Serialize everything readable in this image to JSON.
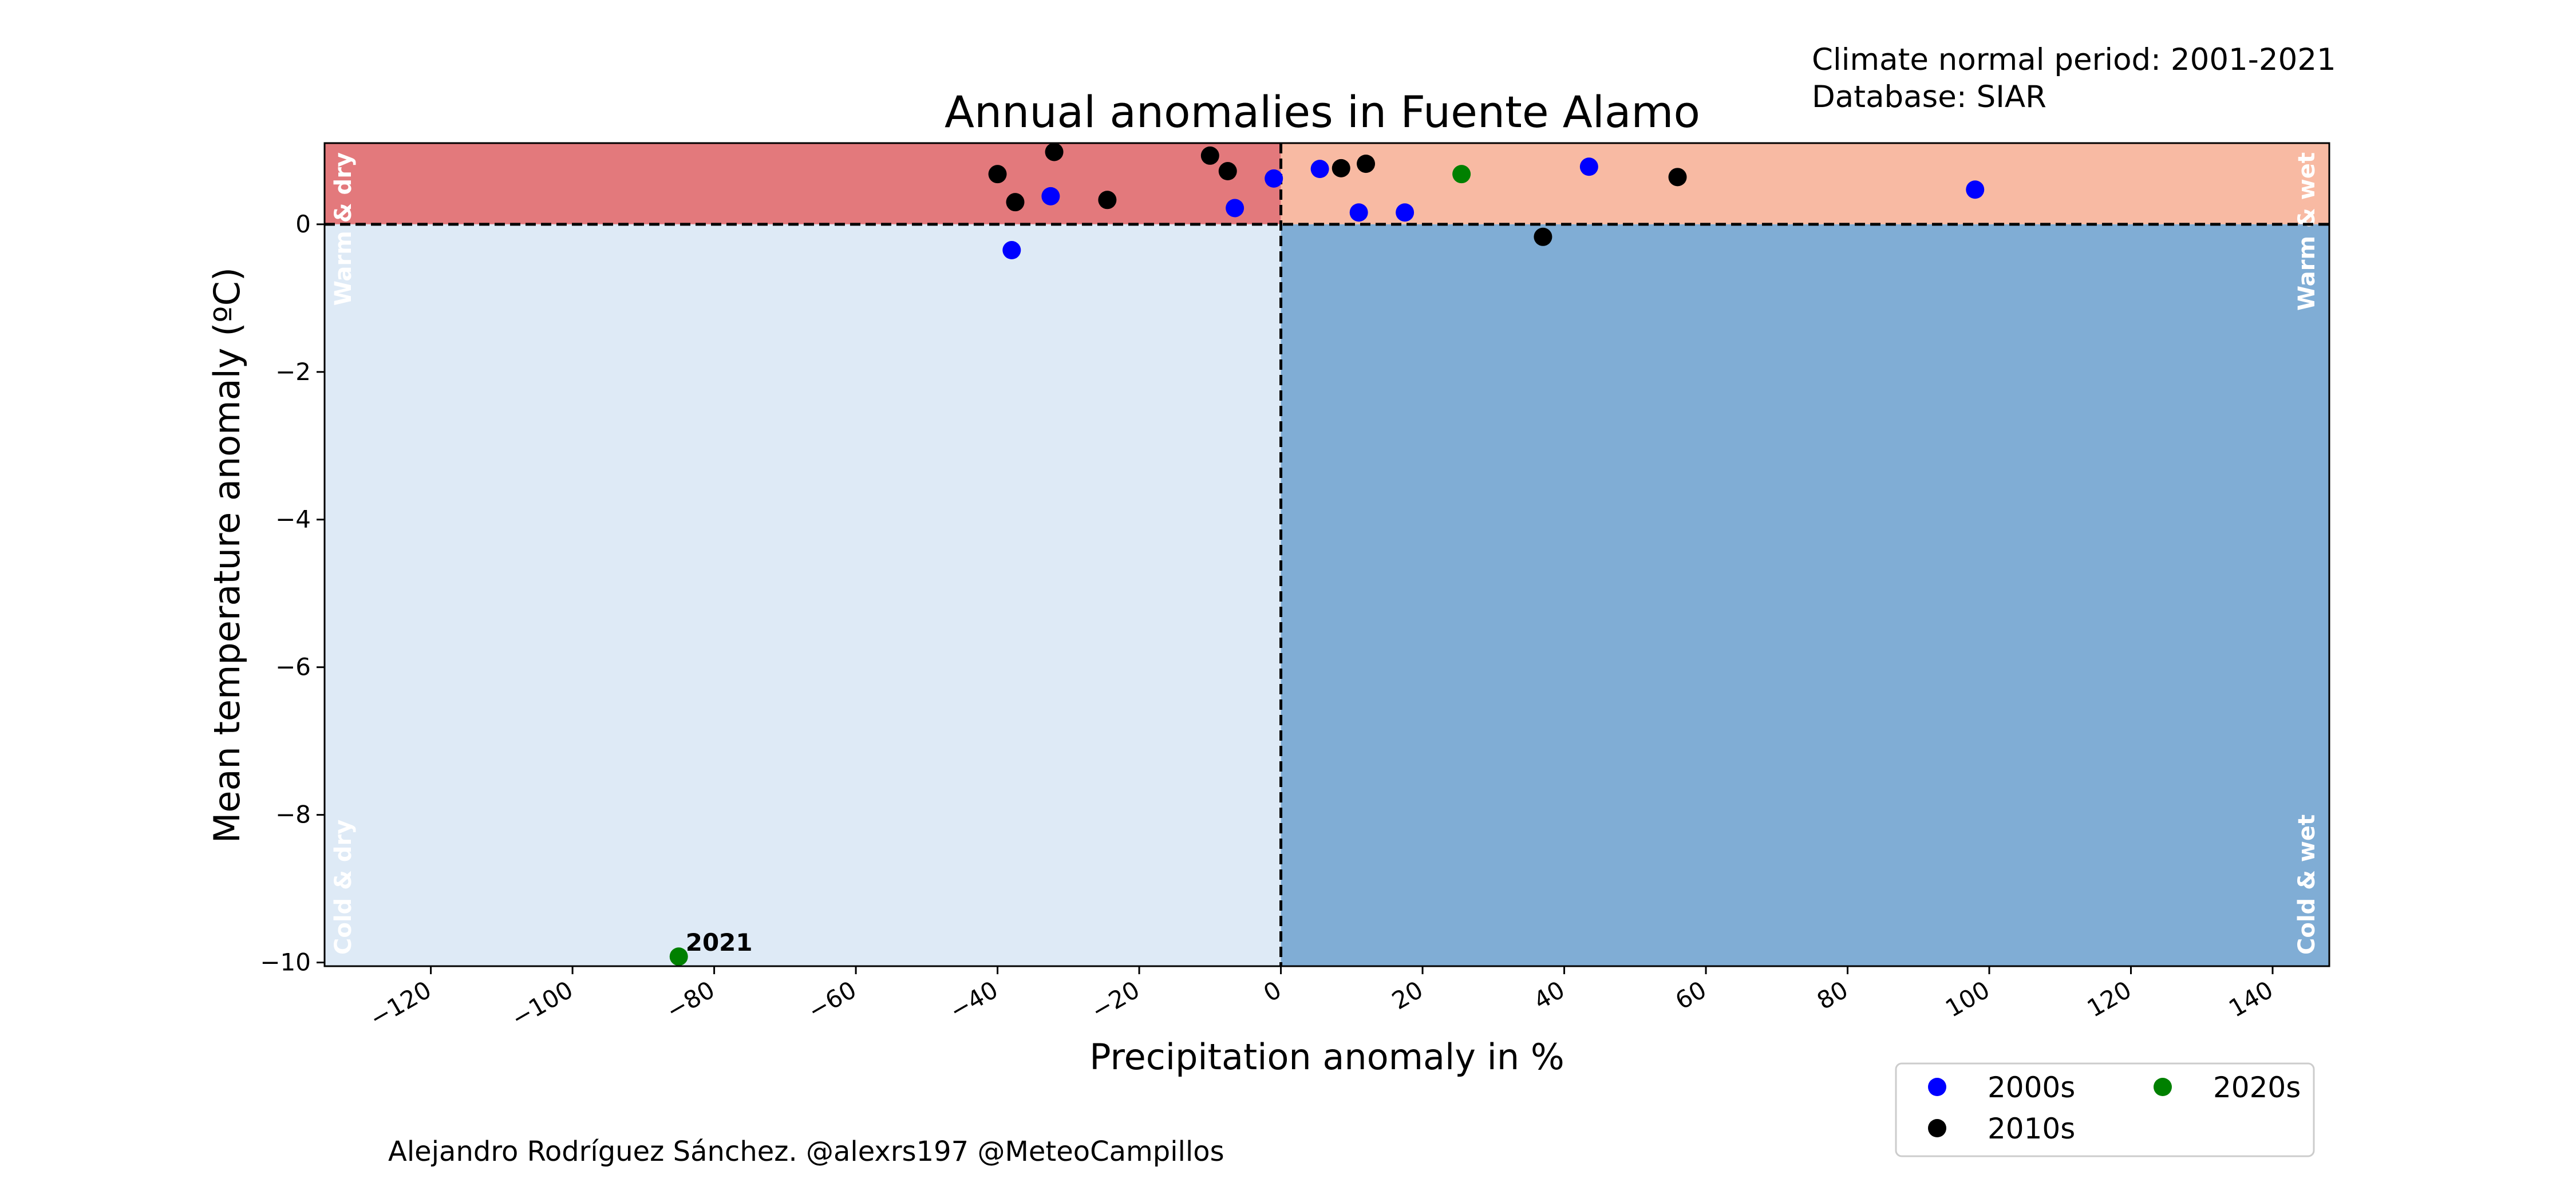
{
  "chart_data": {
    "type": "scatter",
    "title": "Annual anomalies in Fuente Alamo",
    "xlabel": "Precipitation anomaly in %",
    "ylabel": "Mean temperature anomaly (ºC)",
    "info_lines": [
      "Climate normal period: 2001-2021",
      "Database: SIAR"
    ],
    "credit": "Alejandro Rodríguez Sánchez. @alexrs197 @MeteoCampillos",
    "xlim": [
      -135,
      148
    ],
    "ylim": [
      -10.05,
      1.1
    ],
    "xticks": [
      -120,
      -100,
      -80,
      -60,
      -40,
      -20,
      0,
      20,
      40,
      60,
      80,
      100,
      120,
      140
    ],
    "xtick_labels": [
      "−120",
      "−100",
      "−80",
      "−60",
      "−40",
      "−20",
      "0",
      "20",
      "40",
      "60",
      "80",
      "100",
      "120",
      "140"
    ],
    "yticks": [
      0,
      -2,
      -4,
      -6,
      -8,
      -10
    ],
    "ytick_labels": [
      "0",
      "−2",
      "−4",
      "−6",
      "−8",
      "−10"
    ],
    "grid": false,
    "reference_lines": {
      "x": 0,
      "y": 0,
      "style": "dashed"
    },
    "quadrants": [
      {
        "label": "Warm & dry",
        "xrange": [
          -135,
          0
        ],
        "yrange": [
          0,
          1.1
        ],
        "color": "#e3797c"
      },
      {
        "label": "Warm & wet",
        "xrange": [
          0,
          148
        ],
        "yrange": [
          0,
          1.1
        ],
        "color": "#f8baa3"
      },
      {
        "label": "Cold & dry",
        "xrange": [
          -135,
          0
        ],
        "yrange": [
          -10.05,
          0
        ],
        "color": "#deeaf6"
      },
      {
        "label": "Cold & wet",
        "xrange": [
          0,
          148
        ],
        "yrange": [
          -10.05,
          0
        ],
        "color": "#80add5"
      }
    ],
    "legend_position": "lower-right outside",
    "series": [
      {
        "name": "2000s",
        "color": "#0000ff",
        "points": [
          [
            -38,
            -0.35
          ],
          [
            -32.5,
            0.38
          ],
          [
            -6.5,
            0.22
          ],
          [
            -1,
            0.62
          ],
          [
            5.5,
            0.75
          ],
          [
            11,
            0.16
          ],
          [
            17.5,
            0.16
          ],
          [
            43.5,
            0.78
          ],
          [
            98,
            0.47
          ]
        ]
      },
      {
        "name": "2010s",
        "color": "#000000",
        "points": [
          [
            -40,
            0.68
          ],
          [
            -32,
            0.98
          ],
          [
            -37.5,
            0.3
          ],
          [
            -24.5,
            0.33
          ],
          [
            -10,
            0.93
          ],
          [
            -7.5,
            0.72
          ],
          [
            8.5,
            0.76
          ],
          [
            12,
            0.82
          ],
          [
            37,
            -0.17
          ],
          [
            56,
            0.64
          ]
        ]
      },
      {
        "name": "2020s",
        "color": "#008000",
        "points": [
          [
            25.5,
            0.68
          ],
          [
            -85,
            -9.92
          ]
        ]
      }
    ],
    "annotations": [
      {
        "text": "2021",
        "x": -85,
        "y": -9.92
      }
    ]
  }
}
